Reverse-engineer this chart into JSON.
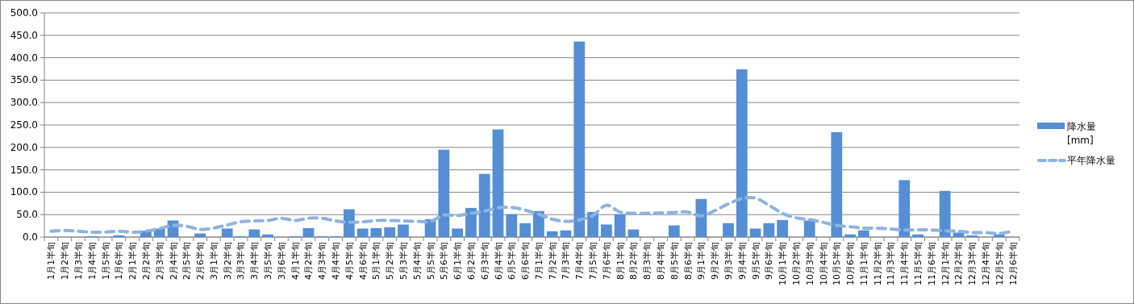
{
  "chart_data": {
    "type": "bar",
    "categories": [
      "1月1半旬",
      "1月2半旬",
      "1月3半旬",
      "1月4半旬",
      "1月5半旬",
      "1月6半旬",
      "2月1半旬",
      "2月2半旬",
      "2月3半旬",
      "2月4半旬",
      "2月5半旬",
      "2月6半旬",
      "3月1半旬",
      "3月2半旬",
      "3月3半旬",
      "3月4半旬",
      "3月5半旬",
      "3月6半旬",
      "4月1半旬",
      "4月2半旬",
      "4月3半旬",
      "4月4半旬",
      "4月5半旬",
      "4月6半旬",
      "5月1半旬",
      "5月2半旬",
      "5月3半旬",
      "5月4半旬",
      "5月5半旬",
      "5月6半旬",
      "6月1半旬",
      "6月2半旬",
      "6月3半旬",
      "6月4半旬",
      "6月5半旬",
      "6月6半旬",
      "7月1半旬",
      "7月2半旬",
      "7月3半旬",
      "7月4半旬",
      "7月5半旬",
      "7月6半旬",
      "8月1半旬",
      "8月2半旬",
      "8月3半旬",
      "8月4半旬",
      "8月5半旬",
      "8月6半旬",
      "9月1半旬",
      "9月2半旬",
      "9月3半旬",
      "9月4半旬",
      "9月5半旬",
      "9月6半旬",
      "10月1半旬",
      "10月2半旬",
      "10月3半旬",
      "10月4半旬",
      "10月5半旬",
      "10月6半旬",
      "11月1半旬",
      "11月2半旬",
      "11月3半旬",
      "11月4半旬",
      "11月5半旬",
      "11月6半旬",
      "12月1半旬",
      "12月2半旬",
      "12月3半旬",
      "12月4半旬",
      "12月5半旬",
      "12月6半旬"
    ],
    "series": [
      {
        "name": "降水量\n[mm]",
        "color": "#558ed5",
        "values": [
          0,
          0,
          0,
          2,
          0,
          4,
          0,
          14,
          19,
          37,
          0,
          8,
          0,
          19,
          2,
          17,
          6,
          0,
          2,
          20,
          2,
          2,
          62,
          19,
          20,
          22,
          28,
          0,
          40,
          195,
          19,
          65,
          141,
          240,
          51,
          31,
          58,
          13,
          15,
          436,
          56,
          28,
          51,
          17,
          0,
          0,
          26,
          0,
          85,
          0,
          31,
          374,
          19,
          31,
          38,
          0,
          37,
          0,
          234,
          6,
          15,
          0,
          0,
          127,
          6,
          0,
          103,
          10,
          4,
          0,
          6,
          0
        ]
      },
      {
        "name": "平年降水量",
        "type": "line",
        "color": "#8db3e2",
        "line_style": "dashed",
        "marker": "none",
        "values": [
          13,
          15,
          13,
          11,
          11,
          13,
          11,
          13,
          19,
          26,
          24,
          17,
          20,
          27,
          34,
          36,
          37,
          42,
          37,
          42,
          42,
          36,
          33,
          34,
          37,
          37,
          36,
          35,
          35,
          49,
          48,
          53,
          58,
          65,
          66,
          60,
          51,
          40,
          35,
          38,
          48,
          71,
          56,
          53,
          53,
          54,
          55,
          56,
          47,
          59,
          74,
          86,
          87,
          71,
          53,
          43,
          39,
          33,
          26,
          23,
          20,
          20,
          18,
          16,
          16,
          16,
          14,
          13,
          10,
          10,
          8,
          13
        ]
      }
    ],
    "ylim": [
      0,
      500
    ],
    "yticks": [
      {
        "value": 0,
        "label": "0.0"
      },
      {
        "value": 50,
        "label": "50.0"
      },
      {
        "value": 100,
        "label": "100.0"
      },
      {
        "value": 150,
        "label": "150.0"
      },
      {
        "value": 200,
        "label": "200.0"
      },
      {
        "value": 250,
        "label": "250.0"
      },
      {
        "value": 300,
        "label": "300.0"
      },
      {
        "value": 350,
        "label": "350.0"
      },
      {
        "value": 400,
        "label": "400.0"
      },
      {
        "value": 450,
        "label": "450.0"
      },
      {
        "value": 500,
        "label": "500.0"
      }
    ],
    "grid": "y",
    "legend": "right"
  }
}
